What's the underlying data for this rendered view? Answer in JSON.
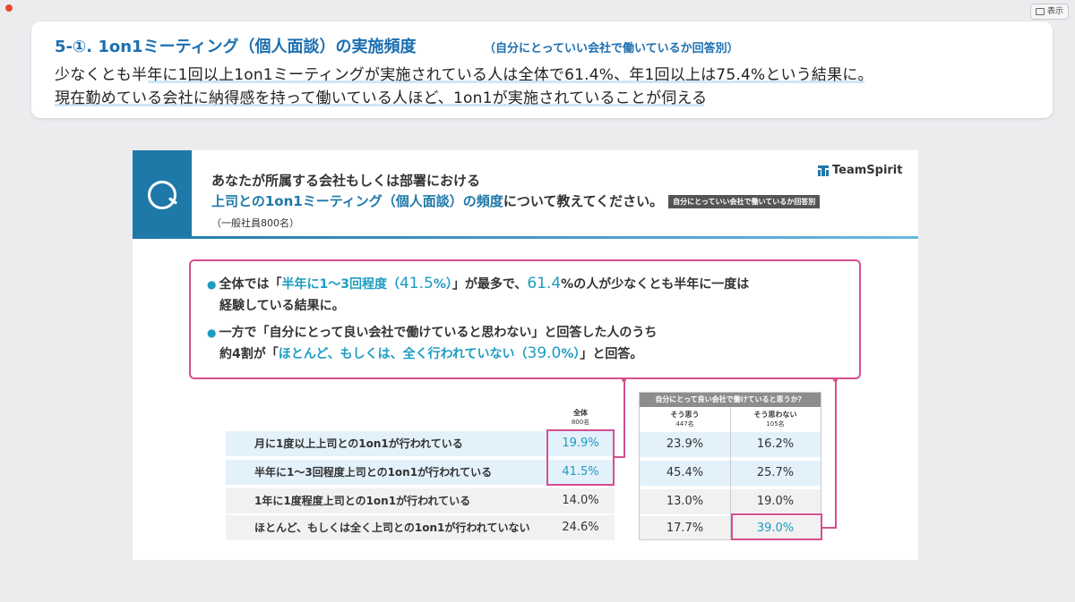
{
  "window": {
    "display_button_label": "表示"
  },
  "caption": {
    "title": "5-①.  1on1ミーティング（個人面談）の実施頻度",
    "subtitle": "（自分にとっていい会社で働いているか回答別）",
    "line1": "少なくとも半年に1回以上1on1ミーティングが実施されている人は全体で61.4%、年1回以上は75.4%という結果に。",
    "line2": "現在勤めている会社に納得感を持って働いている人ほど、1on1が実施されていることが伺える"
  },
  "slide": {
    "question_line1": "あなたが所属する会社もしくは部署における",
    "question_line2_blue": "上司との1on1ミーティング（個人面談）の頻度",
    "question_line2_rest": "について教えてください。",
    "question_tag": "自分にとっていい会社で働いているか回答別",
    "sample": "（一般社員800名）",
    "logo_text": "TeamSpirit",
    "summary": {
      "b1_pre": "全体では「",
      "b1_teal": "半年に1〜3回程度（",
      "b1_pct": "41.5",
      "b1_teal_end": "%）",
      "b1_mid": "」が最多で、",
      "b1_pct2": "61.4",
      "b1_post": "%の人が少なくとも半年に一度は",
      "b1_line2": "経験している結果に。",
      "b2_line1": "一方で「自分にとって良い会社で働けていると思わない」と回答した人のうち",
      "b2_pre": "約4割が「",
      "b2_teal": "ほとんど、もしくは、全く行われていない（",
      "b2_pct": "39.0",
      "b2_teal_end": "%）",
      "b2_post": "」と回答。"
    },
    "table": {
      "col_all": "全体",
      "col_all_n": "800名",
      "sub_header": "自分にとって良い会社で働けていると思うか？",
      "col_yes": "そう思う",
      "col_yes_n": "447名",
      "col_no": "そう思わない",
      "col_no_n": "105名",
      "rows": [
        {
          "label": "月に1度以上上司との1on1が行われている",
          "all": "19.9%",
          "yes": "23.9%",
          "no": "16.2%"
        },
        {
          "label": "半年に1〜3回程度上司との1on1が行われている",
          "all": "41.5%",
          "yes": "45.4%",
          "no": "25.7%"
        },
        {
          "label": "1年に1度程度上司との1on1が行われている",
          "all": "14.0%",
          "yes": "13.0%",
          "no": "19.0%"
        },
        {
          "label": "ほとんど、もしくは全く上司との1on1が行われていない",
          "all": "24.6%",
          "yes": "17.7%",
          "no": "39.0%"
        }
      ]
    }
  },
  "colors": {
    "brand_blue": "#1e79a9",
    "teal": "#1e9cc0",
    "pink": "#d54f8f",
    "caption_blue": "#1c6fb0"
  }
}
